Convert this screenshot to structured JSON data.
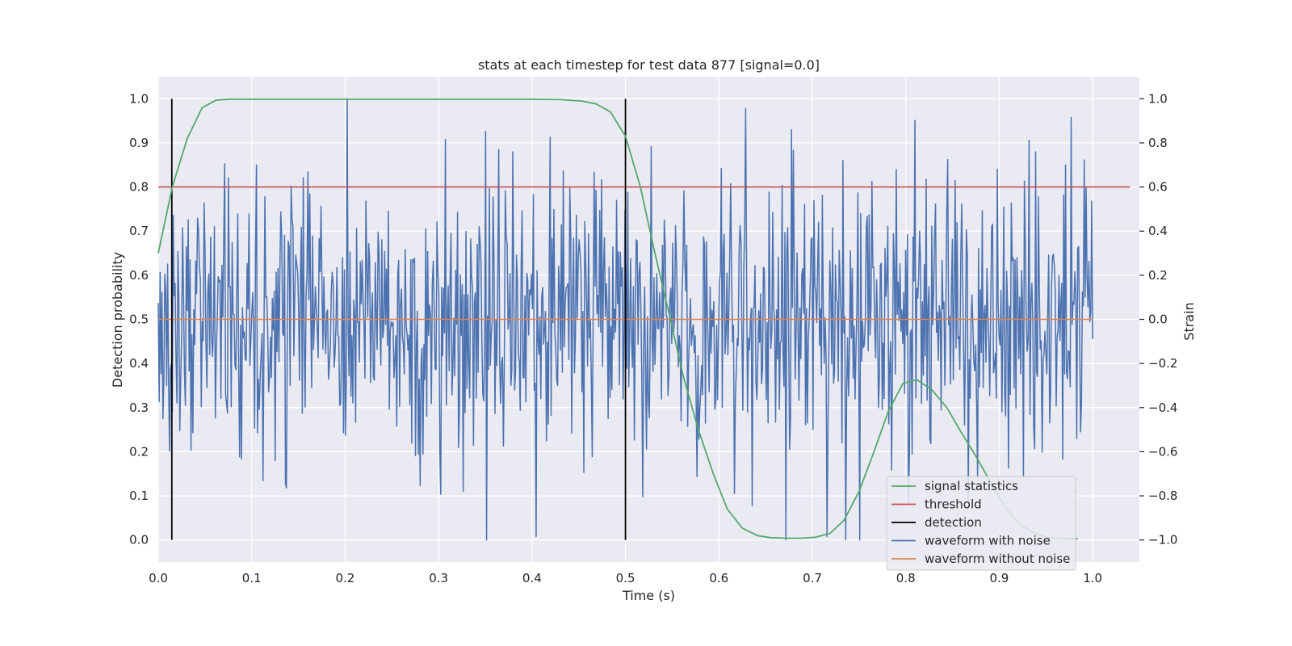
{
  "chart_data": {
    "type": "line",
    "title": "stats at each timestep for test data 877 [signal=0.0]",
    "xlabel": "Time (s)",
    "ylabel": "Detection probability",
    "y2label": "Strain",
    "xlim": [
      0.0,
      1.05
    ],
    "ylim": [
      -0.05,
      1.05
    ],
    "y2lim": [
      -1.1,
      1.1
    ],
    "xticks": [
      "0.0",
      "0.1",
      "0.2",
      "0.3",
      "0.4",
      "0.5",
      "0.6",
      "0.7",
      "0.8",
      "0.9",
      "1.0"
    ],
    "yticks": [
      "0.0",
      "0.1",
      "0.2",
      "0.3",
      "0.4",
      "0.5",
      "0.6",
      "0.7",
      "0.8",
      "0.9",
      "1.0"
    ],
    "y2ticks": [
      "−1.0",
      "−0.8",
      "−0.6",
      "−0.4",
      "−0.2",
      "0.0",
      "0.2",
      "0.4",
      "0.6",
      "0.8",
      "1.0"
    ],
    "grid": true,
    "legend_position": "lower-right",
    "series": [
      {
        "name": "signal statistics",
        "axis": "left",
        "color": "#55a868",
        "x": [
          0.0,
          0.015,
          0.031,
          0.047,
          0.062,
          0.078,
          0.094,
          0.11,
          0.125,
          0.2,
          0.3,
          0.4,
          0.43,
          0.453,
          0.469,
          0.484,
          0.5,
          0.516,
          0.531,
          0.547,
          0.562,
          0.578,
          0.594,
          0.609,
          0.625,
          0.641,
          0.656,
          0.672,
          0.688,
          0.703,
          0.719,
          0.734,
          0.75,
          0.766,
          0.781,
          0.797,
          0.812,
          0.828,
          0.844,
          0.859,
          0.875,
          0.891,
          0.906,
          0.922,
          0.938,
          0.953,
          0.969,
          0.984
        ],
        "y": [
          0.65,
          0.8,
          0.91,
          0.98,
          0.997,
          0.999,
          0.999,
          0.999,
          0.999,
          0.999,
          0.999,
          0.999,
          0.998,
          0.995,
          0.988,
          0.97,
          0.915,
          0.8,
          0.655,
          0.51,
          0.37,
          0.25,
          0.15,
          0.07,
          0.027,
          0.01,
          0.005,
          0.004,
          0.004,
          0.006,
          0.015,
          0.045,
          0.11,
          0.2,
          0.29,
          0.355,
          0.363,
          0.34,
          0.3,
          0.245,
          0.19,
          0.13,
          0.075,
          0.035,
          0.015,
          0.006,
          0.003,
          0.003
        ]
      },
      {
        "name": "threshold",
        "axis": "left",
        "color": "#c44e52",
        "x": [
          0.0,
          1.04
        ],
        "y": [
          0.8,
          0.8
        ]
      },
      {
        "name": "detection",
        "axis": "left",
        "color": "#000000",
        "segments": [
          {
            "x": 0.0145,
            "y": [
              0.0,
              1.0
            ]
          },
          {
            "x": 0.5,
            "y": [
              0.0,
              1.0
            ]
          }
        ]
      },
      {
        "name": "waveform with noise",
        "axis": "right",
        "color": "#4c72b0",
        "x_start": 0.0,
        "x_end": 1.0,
        "samples": 1000,
        "amplitude_range": [
          -1.0,
          1.0
        ]
      },
      {
        "name": "waveform without noise",
        "axis": "right",
        "color": "#dd8452",
        "x": [
          0.0,
          1.0
        ],
        "y": [
          0.0,
          0.0
        ]
      }
    ]
  }
}
